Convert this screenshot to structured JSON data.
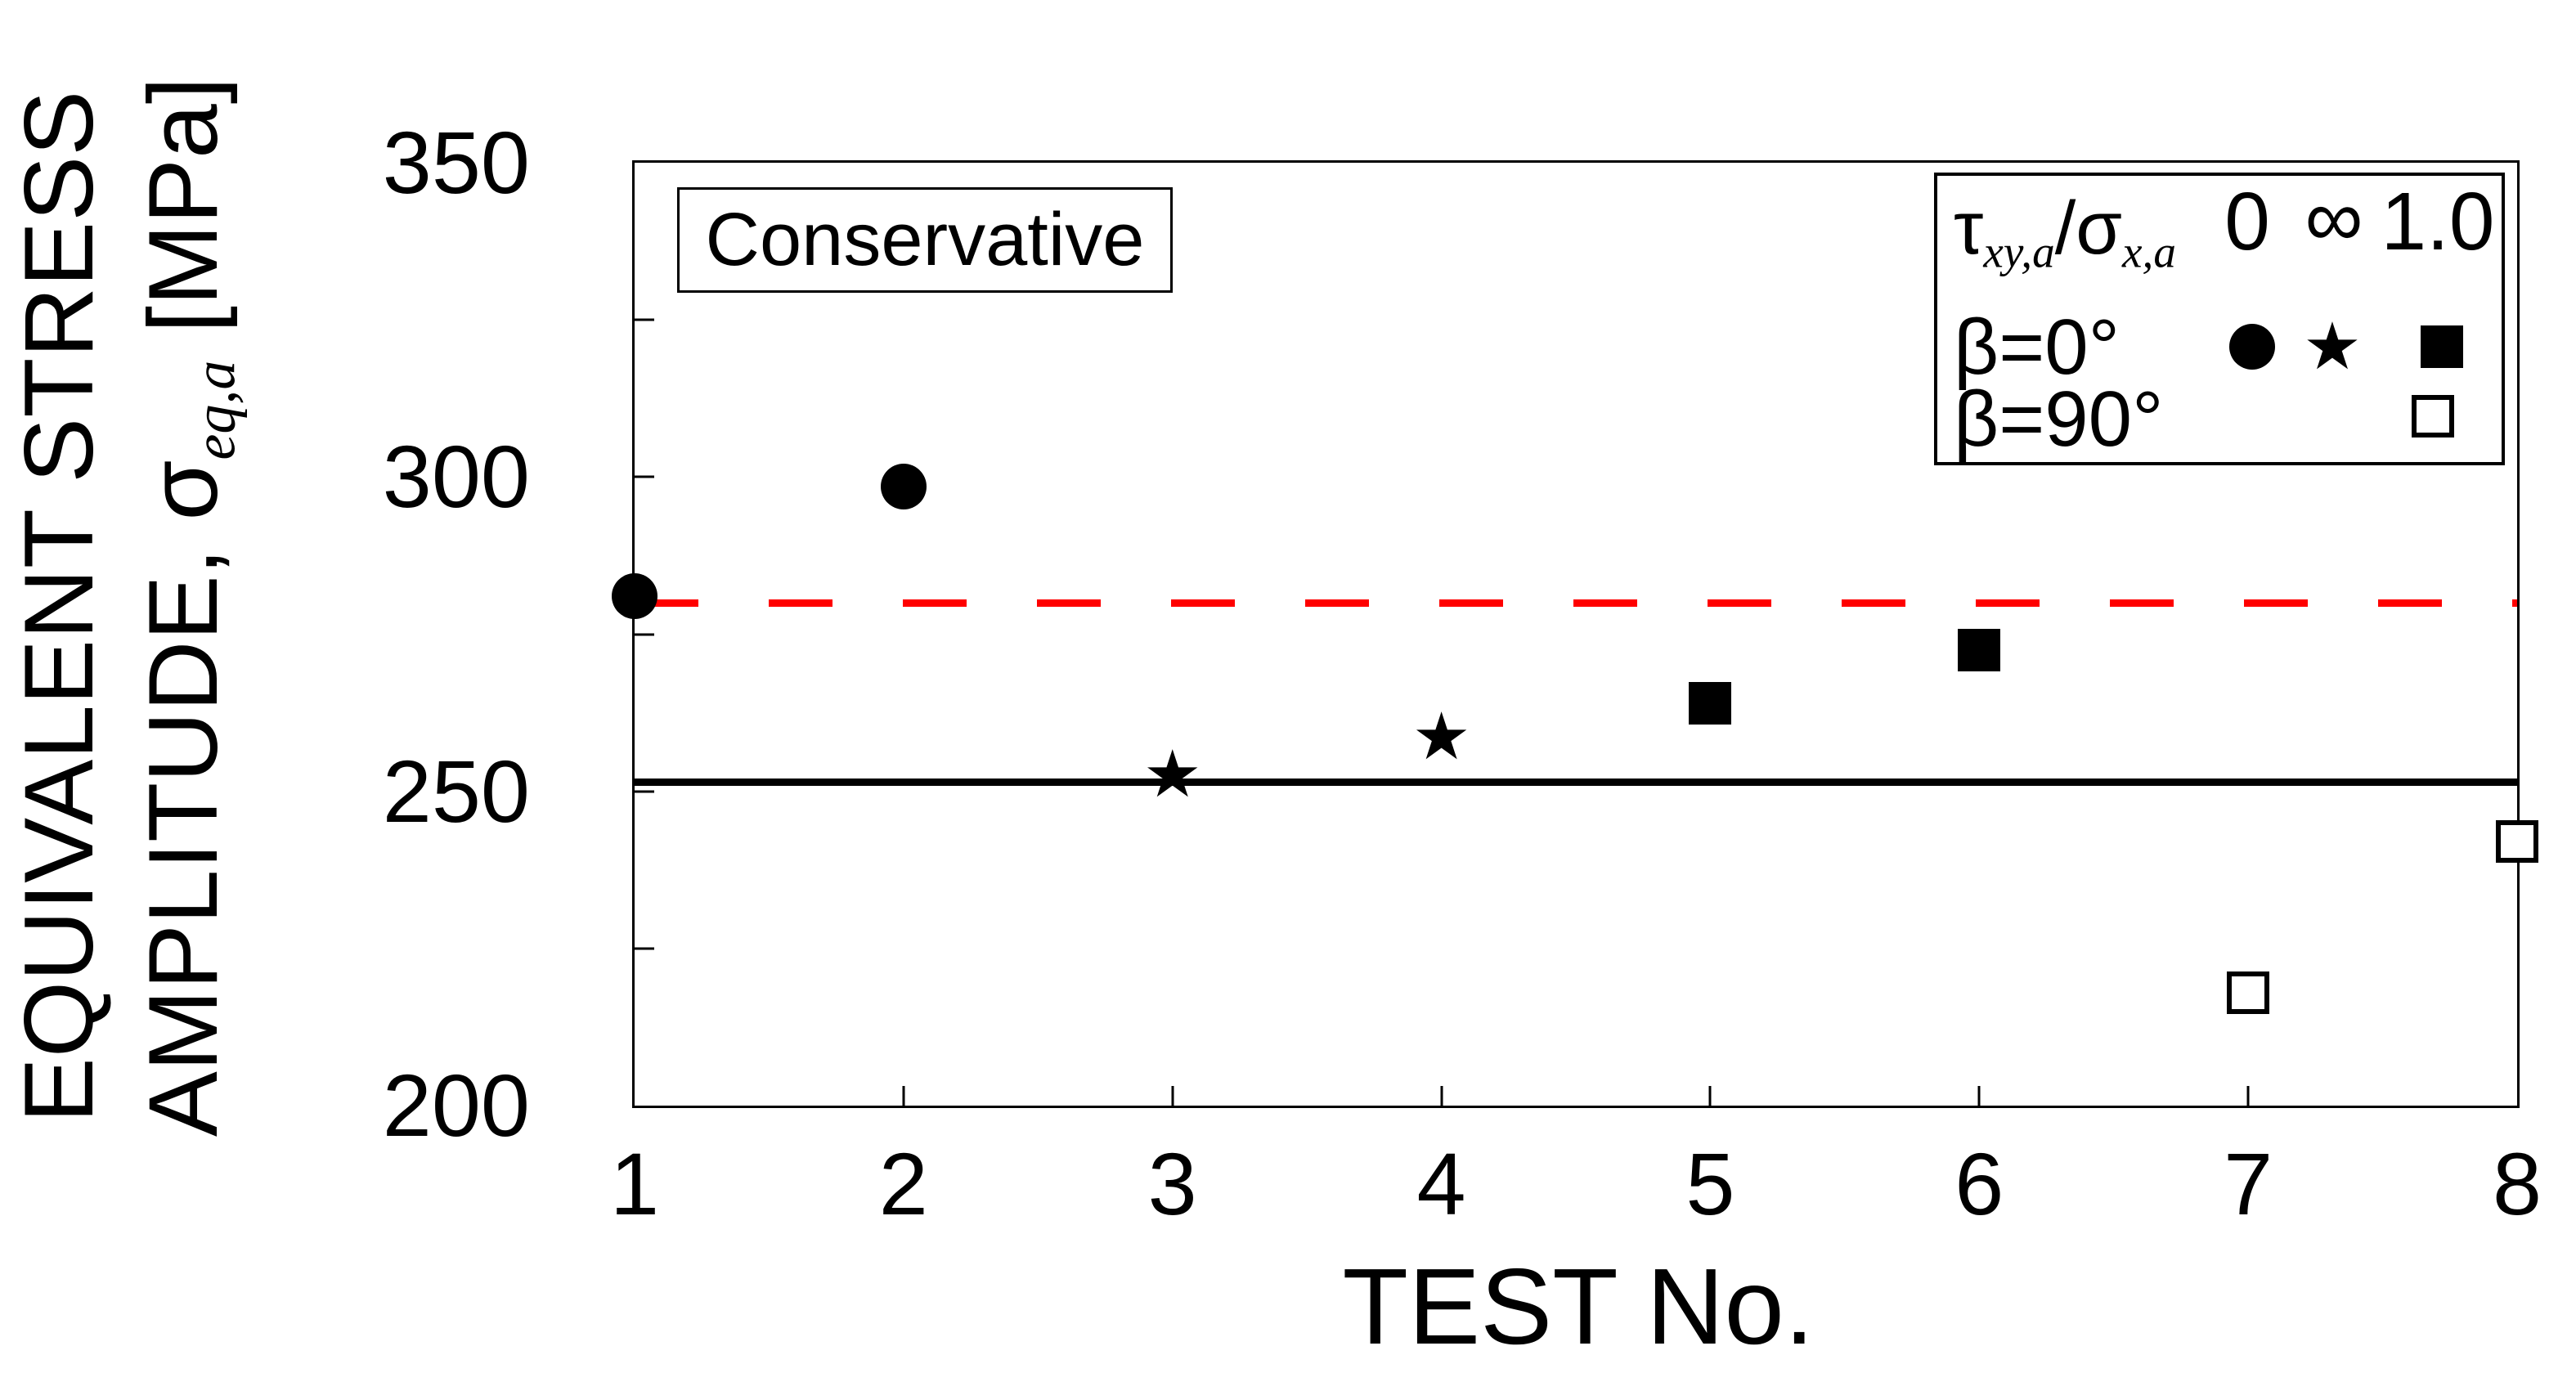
{
  "figure": {
    "annotation": "Conservative",
    "xlabel": "TEST No.",
    "ylabel_line1": "EQUIVALENT STRESS",
    "ylabel_line2_prefix": "AMPLITUDE, ",
    "ylabel_sigma": "σ",
    "ylabel_sigma_sub": "eq,a",
    "ylabel_line2_suffix": " [MPa]"
  },
  "legend": {
    "header": {
      "tau": "τ",
      "tau_sub": "xy,a",
      "slash": "/",
      "sigma": "σ",
      "sigma_sub": "x,a",
      "ratio_values": [
        "0",
        "∞",
        "1.0"
      ]
    },
    "row_beta0_label": "β=0°",
    "row_beta90_label": "β=90°"
  },
  "chart_data": {
    "type": "scatter",
    "xlabel": "TEST No.",
    "ylabel": "EQUIVALENT STRESS AMPLITUDE, σ_eq,a [MPa]",
    "xlim": [
      1,
      8
    ],
    "ylim": [
      200,
      350
    ],
    "x_ticks": [
      1,
      2,
      3,
      4,
      5,
      6,
      7,
      8
    ],
    "x_inner_ticks": [
      2,
      3,
      4,
      5,
      6,
      7
    ],
    "y_tick_labels": [
      350,
      300,
      250,
      200
    ],
    "y_inner_ticks": [
      225,
      250,
      275,
      300,
      325
    ],
    "grid": false,
    "legend_position": "top-right",
    "annotation": "Conservative",
    "series": [
      {
        "name": "β=0°, τxy,a/σx,a = 0",
        "marker": "filled-circle",
        "color": "#000000",
        "points": [
          [
            1,
            281
          ],
          [
            2,
            298.5
          ]
        ]
      },
      {
        "name": "β=0°, τxy,a/σx,a = ∞",
        "marker": "filled-star",
        "color": "#000000",
        "points": [
          [
            3,
            252
          ],
          [
            4,
            258
          ]
        ]
      },
      {
        "name": "β=0°, τxy,a/σx,a = 1.0",
        "marker": "filled-square",
        "color": "#000000",
        "points": [
          [
            5,
            264
          ],
          [
            6,
            272.5
          ]
        ]
      },
      {
        "name": "β=90°, τxy,a/σx,a = 1.0",
        "marker": "open-square",
        "color": "#000000",
        "points": [
          [
            7,
            218
          ],
          [
            8,
            242
          ]
        ]
      }
    ],
    "ref_lines": [
      {
        "style": "dashed",
        "color": "#ff0000",
        "y": 280
      },
      {
        "style": "solid",
        "color": "#000000",
        "y": 251.5
      }
    ]
  }
}
